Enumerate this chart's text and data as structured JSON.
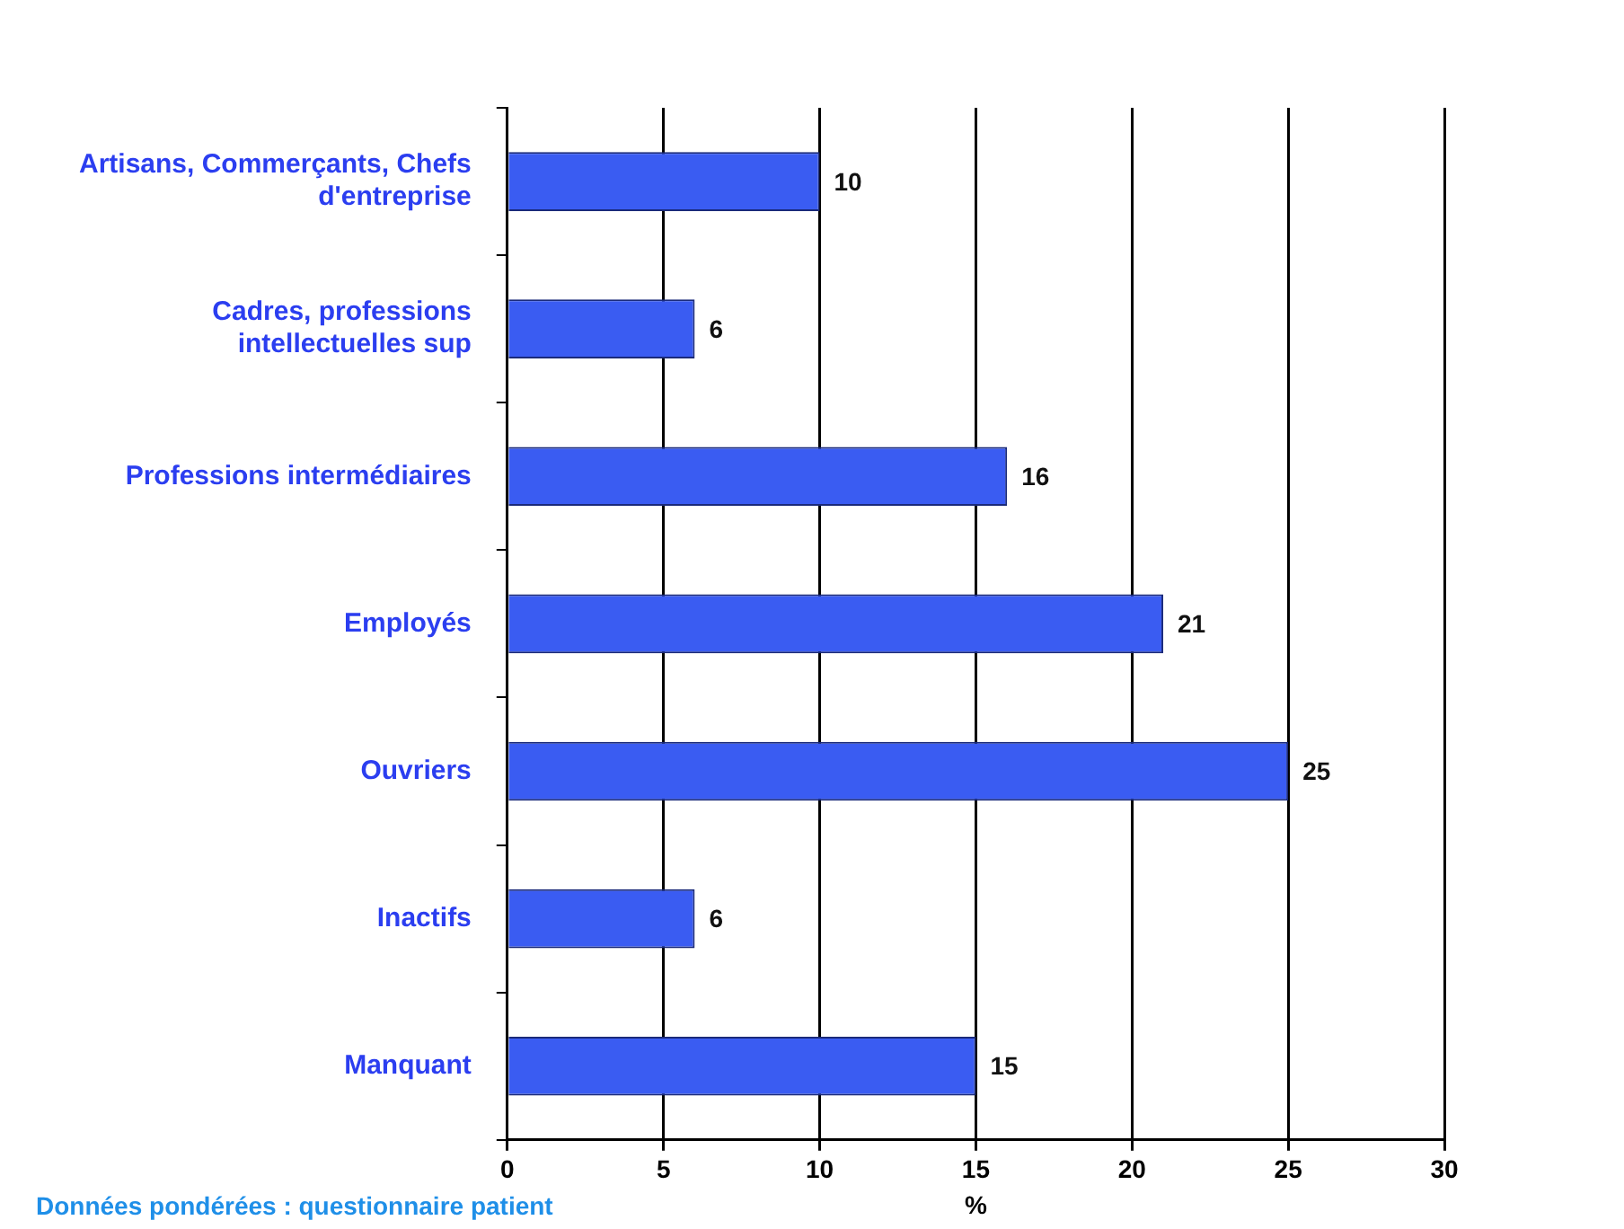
{
  "chart_data": {
    "type": "bar",
    "orientation": "horizontal",
    "categories": [
      "Artisans, Commerçants, Chefs d'entreprise",
      "Cadres, professions intellectuelles sup",
      "Professions intermédiaires",
      "Employés",
      "Ouvriers",
      "Inactifs",
      "Manquant"
    ],
    "values": [
      10,
      6,
      16,
      21,
      25,
      6,
      15
    ],
    "color": "#3a5cf2",
    "xlim": [
      0,
      30
    ],
    "xticks": [
      0,
      5,
      10,
      15,
      20,
      25,
      30
    ],
    "xlabel": "%",
    "grid": "x",
    "legend": false,
    "data_labels": true,
    "annotations": [
      "Données pondérées : questionnaire patient"
    ]
  }
}
